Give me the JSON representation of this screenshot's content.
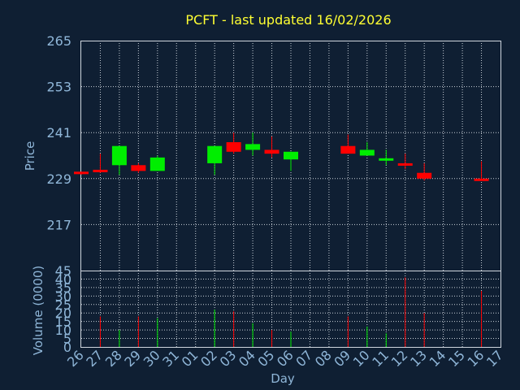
{
  "chart_data": {
    "type": "candlestick",
    "title": "PCFT - last updated 16/02/2026",
    "xlabel": "Day",
    "price_panel": {
      "ylabel": "Price",
      "ylim": [
        205,
        265
      ],
      "yticks": [
        265,
        253,
        241,
        229,
        217
      ]
    },
    "volume_panel": {
      "ylabel": "Volume (0000)",
      "ylim": [
        0,
        45
      ],
      "yticks": [
        0,
        5,
        10,
        15,
        20,
        25,
        30,
        35,
        40,
        45
      ]
    },
    "x_ticks": [
      "26",
      "27",
      "28",
      "29",
      "30",
      "31",
      "01",
      "02",
      "03",
      "04",
      "05",
      "06",
      "07",
      "08",
      "09",
      "10",
      "11",
      "12",
      "13",
      "14",
      "15",
      "16",
      "17"
    ],
    "grid": true,
    "colors": {
      "up": "#00ee00",
      "down": "#ff0000",
      "title": "#ffff33",
      "text": "#8fb6d8",
      "background": "#0f1f33"
    },
    "candles": [
      {
        "day": "26",
        "open": 230.8,
        "high": 230.8,
        "low": 230.0,
        "close": 230.2
      },
      {
        "day": "27",
        "open": 231.3,
        "high": 235.5,
        "low": 230.5,
        "close": 230.7
      },
      {
        "day": "28",
        "open": 232.5,
        "high": 237.5,
        "low": 230.0,
        "close": 237.5
      },
      {
        "day": "29",
        "open": 232.5,
        "high": 233.0,
        "low": 230.5,
        "close": 231.0
      },
      {
        "day": "30",
        "open": 231.0,
        "high": 235.0,
        "low": 231.0,
        "close": 234.5
      },
      {
        "day": "02",
        "open": 233.0,
        "high": 237.5,
        "low": 230.0,
        "close": 237.5
      },
      {
        "day": "03",
        "open": 238.5,
        "high": 241.0,
        "low": 235.5,
        "close": 236.0
      },
      {
        "day": "04",
        "open": 236.5,
        "high": 241.0,
        "low": 235.0,
        "close": 238.0
      },
      {
        "day": "05",
        "open": 236.5,
        "high": 240.0,
        "low": 234.5,
        "close": 235.5
      },
      {
        "day": "06",
        "open": 234.0,
        "high": 236.0,
        "low": 231.0,
        "close": 236.0
      },
      {
        "day": "09",
        "open": 237.5,
        "high": 240.5,
        "low": 235.5,
        "close": 235.5
      },
      {
        "day": "10",
        "open": 235.0,
        "high": 238.5,
        "low": 235.0,
        "close": 236.5
      },
      {
        "day": "11",
        "open": 233.8,
        "high": 236.5,
        "low": 232.5,
        "close": 234.3
      },
      {
        "day": "12",
        "open": 233.0,
        "high": 235.5,
        "low": 231.5,
        "close": 232.5
      },
      {
        "day": "13",
        "open": 230.5,
        "high": 233.0,
        "low": 228.5,
        "close": 229.0
      },
      {
        "day": "16",
        "open": 229.0,
        "high": 233.5,
        "low": 228.5,
        "close": 228.5
      }
    ],
    "volumes": [
      {
        "day": "27",
        "value": 18,
        "direction": "down"
      },
      {
        "day": "28",
        "value": 10,
        "direction": "up"
      },
      {
        "day": "29",
        "value": 18,
        "direction": "down"
      },
      {
        "day": "30",
        "value": 17,
        "direction": "up"
      },
      {
        "day": "02",
        "value": 22,
        "direction": "up"
      },
      {
        "day": "03",
        "value": 21,
        "direction": "down"
      },
      {
        "day": "04",
        "value": 14,
        "direction": "up"
      },
      {
        "day": "05",
        "value": 10,
        "direction": "down"
      },
      {
        "day": "06",
        "value": 9,
        "direction": "up"
      },
      {
        "day": "09",
        "value": 18,
        "direction": "down"
      },
      {
        "day": "10",
        "value": 12,
        "direction": "up"
      },
      {
        "day": "11",
        "value": 8,
        "direction": "up"
      },
      {
        "day": "12",
        "value": 41,
        "direction": "down"
      },
      {
        "day": "13",
        "value": 20,
        "direction": "down"
      },
      {
        "day": "16",
        "value": 33,
        "direction": "down"
      }
    ]
  }
}
